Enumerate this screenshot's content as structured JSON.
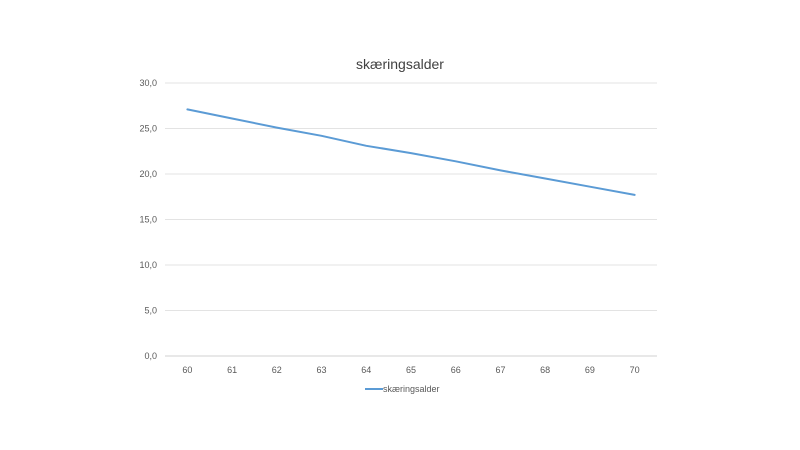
{
  "chart_data": {
    "type": "line",
    "title": "skæringsalder",
    "xlabel": "",
    "ylabel": "",
    "categories": [
      "60",
      "61",
      "62",
      "63",
      "64",
      "65",
      "66",
      "67",
      "68",
      "69",
      "70"
    ],
    "y_ticks": [
      "0,0",
      "5,0",
      "10,0",
      "15,0",
      "20,0",
      "25,0",
      "30,0"
    ],
    "ylim": [
      0,
      30
    ],
    "grid": "horizontal",
    "legend_position": "bottom",
    "series": [
      {
        "name": "skæringsalder",
        "color": "#5b9bd5",
        "values": [
          27.1,
          26.1,
          25.1,
          24.2,
          23.1,
          22.3,
          21.4,
          20.4,
          19.5,
          18.6,
          17.7
        ]
      }
    ]
  }
}
